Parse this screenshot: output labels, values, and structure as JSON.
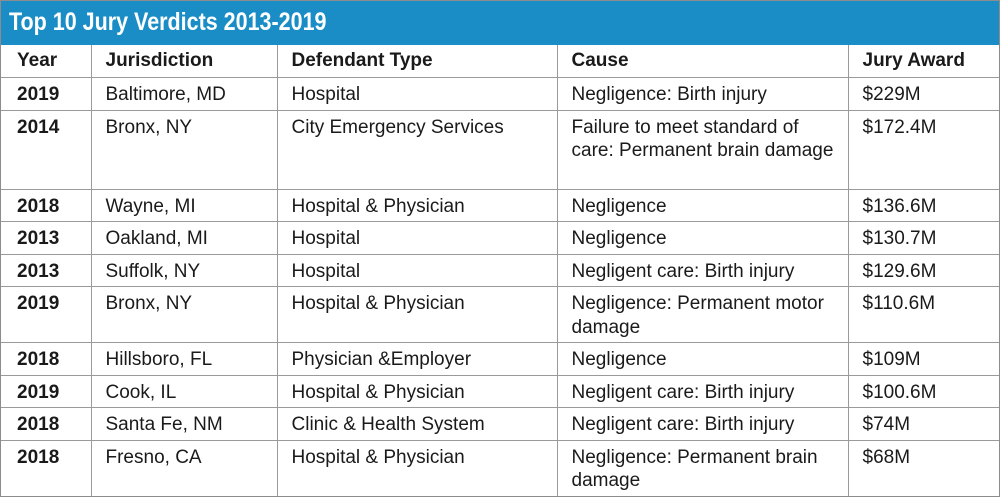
{
  "title": "Top 10 Jury Verdicts 2013-2019",
  "headers": {
    "year": "Year",
    "jurisdiction": "Jurisdiction",
    "defendant_type": "Defendant Type",
    "cause": "Cause",
    "jury_award": "Jury Award"
  },
  "rows": [
    {
      "year": "2019",
      "jurisdiction": "Baltimore, MD",
      "defendant_type": "Hospital",
      "cause": "Negligence: Birth injury",
      "jury_award": "$229M"
    },
    {
      "year": "2014",
      "jurisdiction": "Bronx, NY",
      "defendant_type": "City Emergency Services",
      "cause": "Failure to meet standard of care: Permanent brain damage",
      "jury_award": "$172.4M"
    },
    {
      "year": "2018",
      "jurisdiction": "Wayne, MI",
      "defendant_type": "Hospital & Physician",
      "cause": "Negligence",
      "jury_award": "$136.6M"
    },
    {
      "year": "2013",
      "jurisdiction": "Oakland, MI",
      "defendant_type": "Hospital",
      "cause": "Negligence",
      "jury_award": "$130.7M"
    },
    {
      "year": "2013",
      "jurisdiction": "Suffolk, NY",
      "defendant_type": "Hospital",
      "cause": "Negligent care: Birth injury",
      "jury_award": "$129.6M"
    },
    {
      "year": "2019",
      "jurisdiction": "Bronx, NY",
      "defendant_type": "Hospital & Physician",
      "cause": "Negligence: Permanent motor damage",
      "jury_award": "$110.6M"
    },
    {
      "year": "2018",
      "jurisdiction": "Hillsboro, FL",
      "defendant_type": "Physician &Employer",
      "cause": "Negligence",
      "jury_award": "$109M"
    },
    {
      "year": "2019",
      "jurisdiction": "Cook, IL",
      "defendant_type": "Hospital & Physician",
      "cause": "Negligent care: Birth injury",
      "jury_award": "$100.6M"
    },
    {
      "year": "2018",
      "jurisdiction": "Santa Fe, NM",
      "defendant_type": "Clinic & Health System",
      "cause": "Negligent care: Birth injury",
      "jury_award": "$74M"
    },
    {
      "year": "2018",
      "jurisdiction": "Fresno, CA",
      "defendant_type": "Hospital & Physician",
      "cause": "Negligence: Permanent brain damage",
      "jury_award": "$68M"
    }
  ],
  "colors": {
    "title_bar": "#1a8dc6",
    "title_text": "#ffffff",
    "rule": "#9a9a9a"
  }
}
